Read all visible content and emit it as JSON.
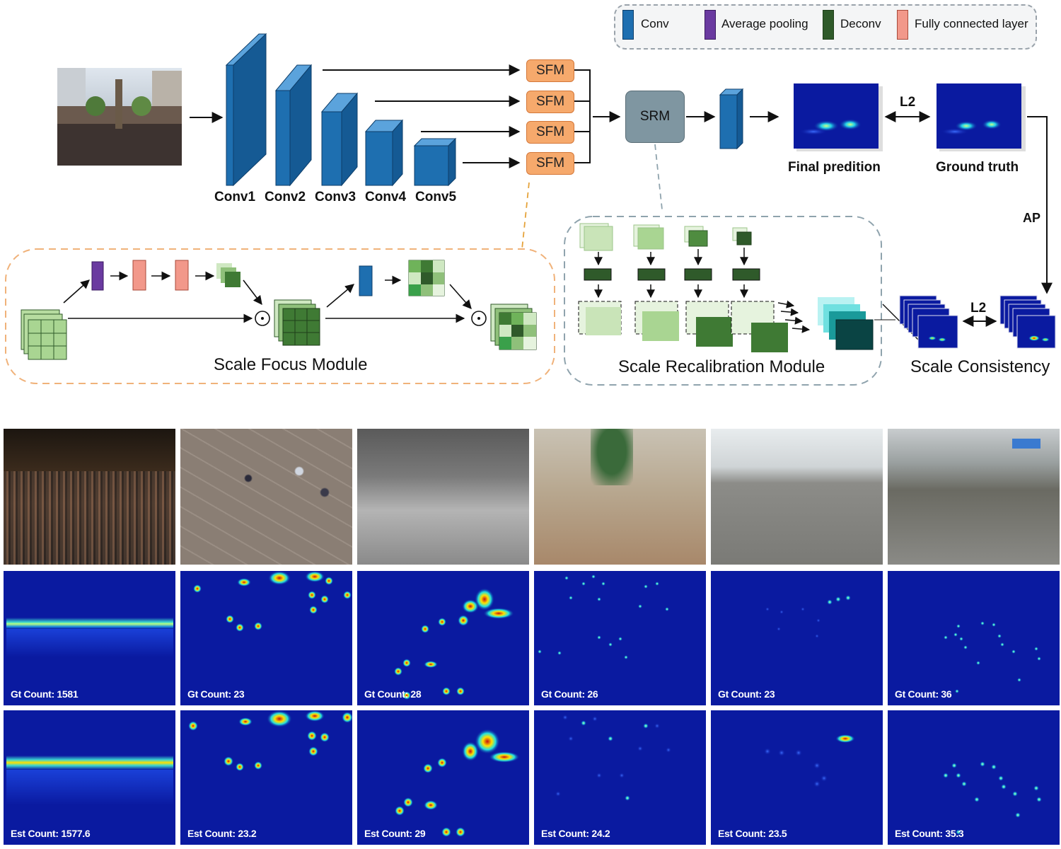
{
  "legend": {
    "items": [
      {
        "label": "Conv",
        "color": "#1e6fb0"
      },
      {
        "label": "Average pooling",
        "color": "#6a3aa0"
      },
      {
        "label": "Deconv",
        "color": "#2f5a2a"
      },
      {
        "label": "Fully connected layer",
        "color": "#f2988a"
      }
    ]
  },
  "backbone": {
    "layers": [
      "Conv1",
      "Conv2",
      "Conv3",
      "Conv4",
      "Conv5"
    ]
  },
  "sfm_label": "SFM",
  "srm_label": "SRM",
  "outputs": {
    "final_prediction": "Final predition",
    "ground_truth": "Ground truth",
    "l2_top": "L2",
    "ap": "AP",
    "l2_bottom": "L2"
  },
  "modules": {
    "scale_focus": "Scale Focus Module",
    "scale_recalibration": "Scale Recalibration Module",
    "scale_consistency": "Scale Consistency"
  },
  "colors": {
    "conv": "#1e6fb0",
    "sfm": "#f6a96c",
    "srm": "#7f96a1",
    "heat_bg": "#0a1aa0",
    "dashed_orange": "#f0b27a",
    "dashed_gray": "#8fa3ad"
  },
  "examples": [
    {
      "gt": "Gt Count: 1581",
      "est": "Est Count: 1577.6"
    },
    {
      "gt": "Gt Count: 23",
      "est": "Est Count: 23.2"
    },
    {
      "gt": "Gt Count: 28",
      "est": "Est Count: 29"
    },
    {
      "gt": "Gt Count: 26",
      "est": "Est Count: 24.2"
    },
    {
      "gt": "Gt Count: 23",
      "est": "Est Count: 23.5"
    },
    {
      "gt": "Gt Count: 36",
      "est": "Est Count: 35.3"
    }
  ]
}
